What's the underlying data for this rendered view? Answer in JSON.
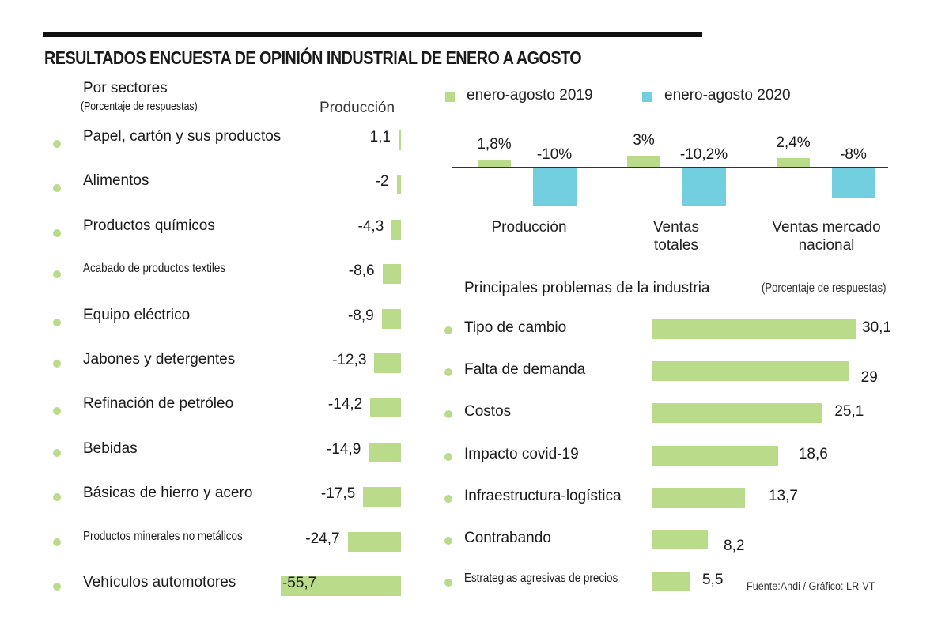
{
  "title": "RESULTADOS ENCUESTA DE OPINIÓN INDUSTRIAL DE ENERO A AGOSTO",
  "source": "Fuente:Andi / Gráfico: LR-VT",
  "colors": {
    "series_2019": "#b9db8a",
    "series_2020": "#72cfe0",
    "bullet": "#b9db8a"
  },
  "chart_data": [
    {
      "type": "bar",
      "orientation": "horizontal",
      "title": "Por sectores",
      "subtitle": "(Porcentaje de respuestas)",
      "column_label": "Producción",
      "categories": [
        "Papel, cartón y sus productos",
        "Alimentos",
        "Productos químicos",
        "Acabado de productos textiles",
        "Equipo eléctrico",
        "Jabones y detergentes",
        "Refinación de petróleo",
        "Bebidas",
        "Básicas de hierro y acero",
        "Productos minerales no metálicos",
        "Vehículos automotores"
      ],
      "values": [
        1.1,
        -2,
        -4.3,
        -8.6,
        -8.9,
        -12.3,
        -14.2,
        -14.9,
        -17.5,
        -24.7,
        -55.7
      ],
      "value_labels": [
        "1,1",
        "-2",
        "-4,3",
        "-8,6",
        "-8,9",
        "-12,3",
        "-14,2",
        "-14,9",
        "-17,5",
        "-24,7",
        "-55,7"
      ]
    },
    {
      "type": "bar",
      "orientation": "vertical",
      "title": "",
      "legend": [
        "enero-agosto 2019",
        "enero-agosto 2020"
      ],
      "legend_position": "top",
      "categories": [
        "Producción",
        "Ventas totales",
        "Ventas mercado nacional"
      ],
      "category_lines": [
        [
          "Producción"
        ],
        [
          "Ventas",
          "totales"
        ],
        [
          "Ventas mercado",
          "nacional"
        ]
      ],
      "series": [
        {
          "name": "enero-agosto 2019",
          "values": [
            1.8,
            3,
            2.4
          ],
          "labels": [
            "1,8%",
            "3%",
            "2,4%"
          ]
        },
        {
          "name": "enero-agosto 2020",
          "values": [
            -10,
            -10.2,
            -8
          ],
          "labels": [
            "-10%",
            "-10,2%",
            "-8%"
          ]
        }
      ],
      "unit": "%"
    },
    {
      "type": "bar",
      "orientation": "horizontal",
      "title": "Principales problemas de la industria",
      "subtitle": "(Porcentaje de respuestas)",
      "categories": [
        "Tipo de cambio",
        "Falta de demanda",
        "Costos",
        "Impacto covid-19",
        "Infraestructura-logística",
        "Contrabando",
        "Estrategias agresivas de precios"
      ],
      "values": [
        30.1,
        29,
        25.1,
        18.6,
        13.7,
        8.2,
        5.5
      ],
      "value_labels": [
        "30,1",
        "29",
        "25,1",
        "18,6",
        "13,7",
        "8,2",
        "5,5"
      ]
    }
  ]
}
